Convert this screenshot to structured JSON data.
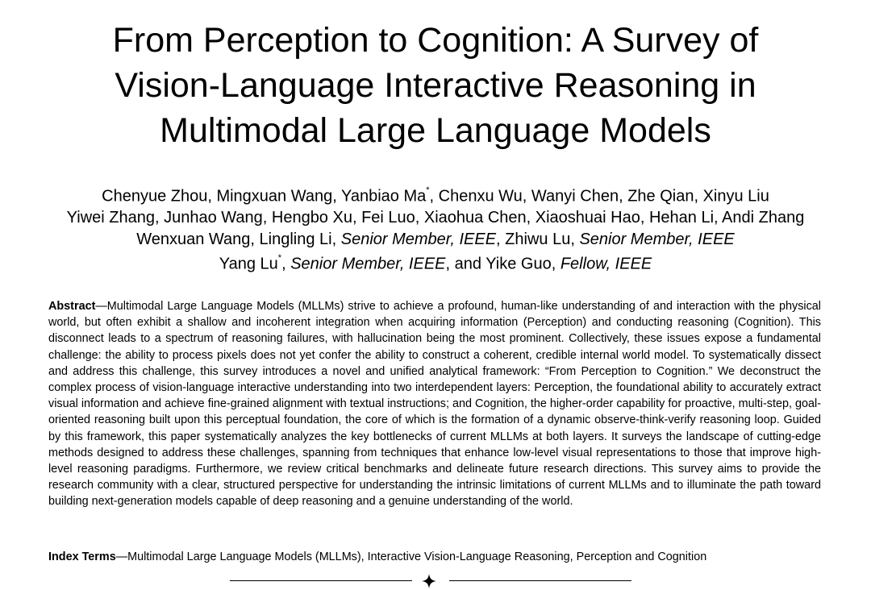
{
  "title": {
    "line1": "From Perception to Cognition: A Survey of",
    "line2": "Vision-Language Interactive Reasoning in",
    "line3": "Multimodal Large Language Models"
  },
  "authors": {
    "line1_a": "Chenyue Zhou, Mingxuan Wang, Yanbiao Ma",
    "mark": "*",
    "line1_b": ", Chenxu Wu, Wanyi Chen, Zhe Qian,  Xinyu Liu",
    "line2": "Yiwei Zhang, Junhao Wang, Hengbo Xu, Fei Luo, Xiaohua Chen, Xiaoshuai Hao, Hehan Li, Andi Zhang",
    "line3_a": "Wenxuan Wang, Lingling Li, ",
    "senior_member": "Senior Member, IEEE",
    "line3_b": ", Zhiwu Lu, ",
    "line4_a": "Yang Lu",
    "line4_b": ", ",
    "line4_c": ", and Yike Guo, ",
    "fellow": "Fellow, IEEE"
  },
  "abstract": {
    "label": "Abstract",
    "text": "—Multimodal Large Language Models (MLLMs) strive to achieve a profound, human-like understanding of and interaction with the physical world, but often exhibit a shallow and incoherent integration when acquiring information (Perception) and conducting reasoning (Cognition). This disconnect leads to a spectrum of reasoning failures, with hallucination being the most prominent. Collectively, these issues expose a fundamental challenge: the ability to process pixels does not yet confer the ability to construct a coherent, credible internal world model. To systematically dissect and address this challenge, this survey introduces a novel and unified analytical framework: “From Perception to Cognition.” We deconstruct the complex process of vision-language interactive understanding into two interdependent layers: Perception, the foundational ability to accurately extract visual information and achieve fine-grained alignment with textual instructions; and Cognition, the higher-order capability for proactive, multi-step, goal-oriented reasoning built upon this perceptual foundation, the core of which is the formation of a dynamic observe-think-verify reasoning loop. Guided by this framework, this paper systematically analyzes the key bottlenecks of current MLLMs at both layers. It surveys the landscape of cutting-edge methods designed to address these challenges, spanning from techniques that enhance low-level visual representations to those that improve high-level reasoning paradigms. Furthermore, we review critical benchmarks and delineate future research directions. This survey aims to provide the research community with a clear, structured perspective for understanding the intrinsic limitations of current MLLMs and to illuminate the path toward building next-generation models capable of deep reasoning and a genuine understanding of the world."
  },
  "index_terms": {
    "label": "Index Terms",
    "text": "—Multimodal Large Language Models (MLLMs), Interactive Vision-Language Reasoning, Perception and Cognition"
  },
  "divider": {
    "icon": "four-point-star-icon"
  }
}
